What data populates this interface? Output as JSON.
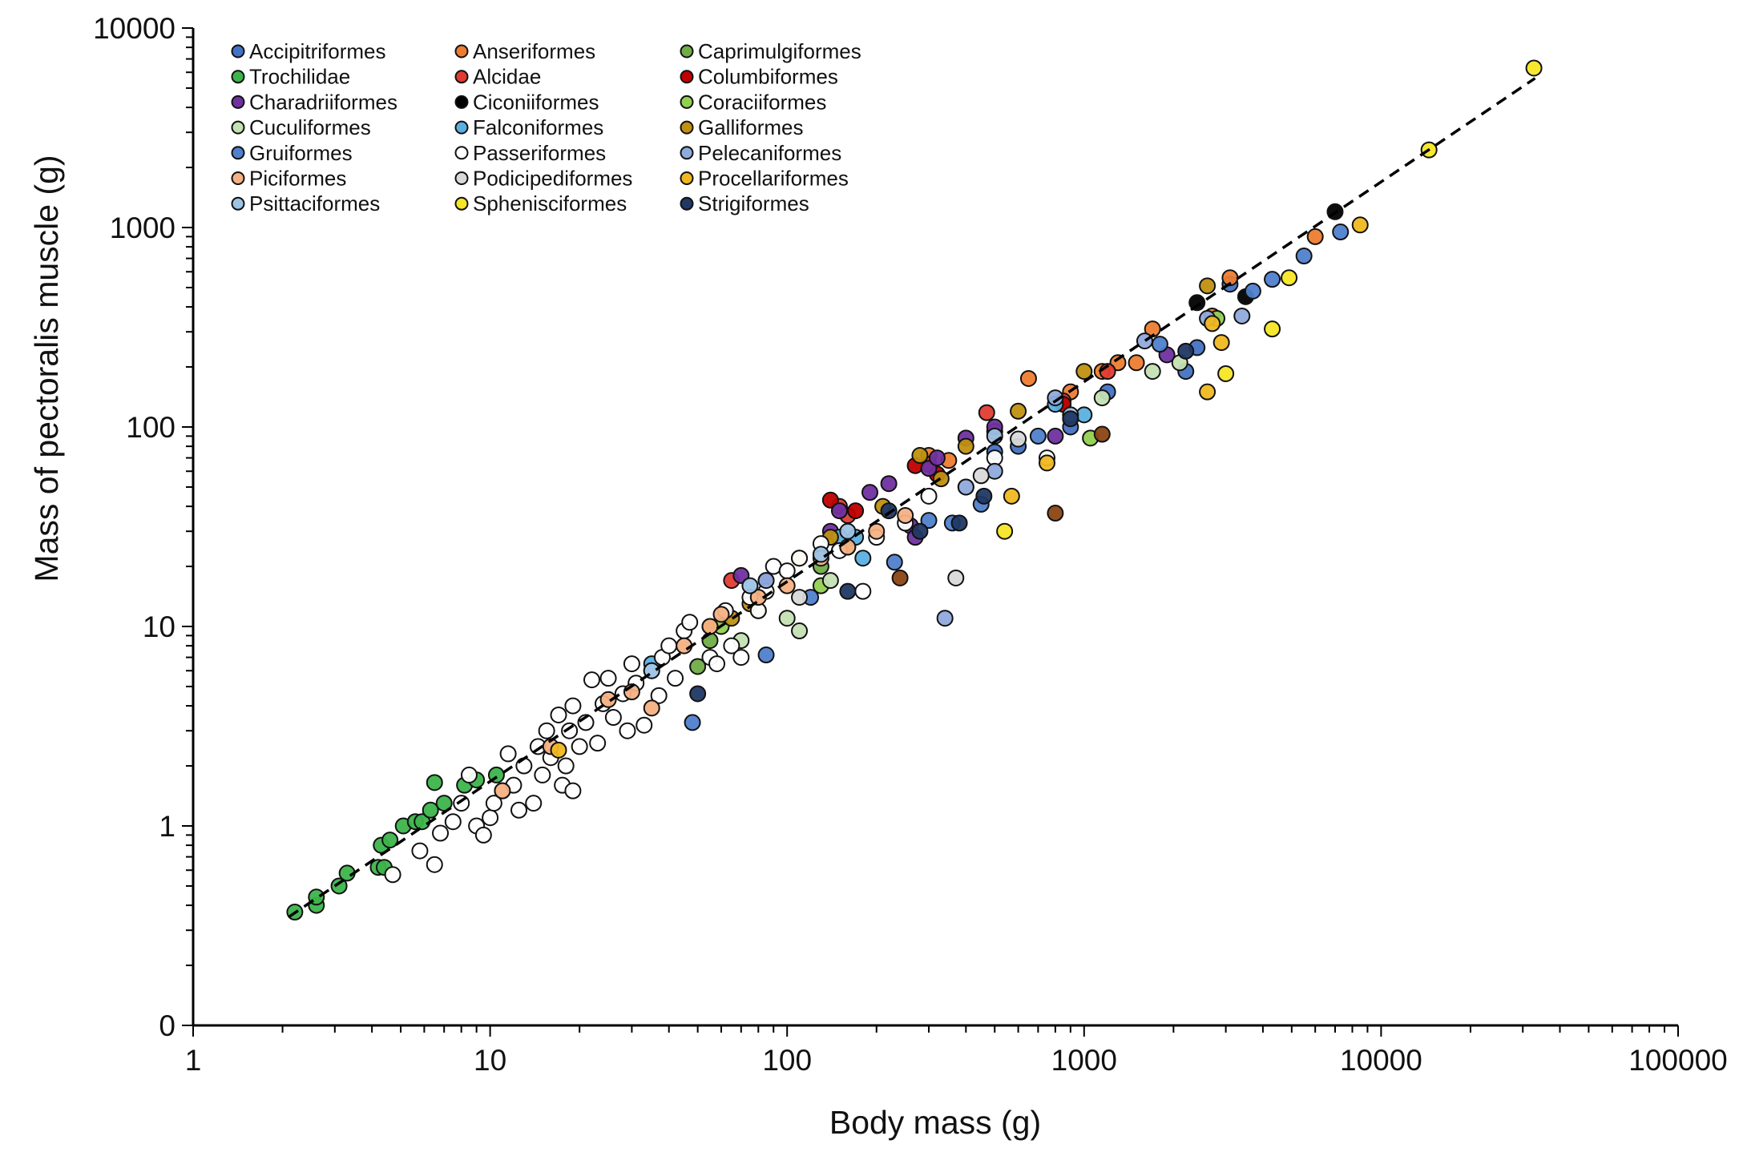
{
  "chart_data": {
    "type": "scatter",
    "title": "",
    "xlabel": "Body mass (g)",
    "ylabel": "Mass of pectoralis muscle (g)",
    "xscale": "log",
    "yscale": "log",
    "xlim": [
      1,
      100000
    ],
    "ylim": [
      0.1,
      10000
    ],
    "xticks": [
      1,
      10,
      100,
      1000,
      10000,
      100000
    ],
    "xtick_labels": [
      "1",
      "10",
      "100",
      "1000",
      "10000",
      "100000"
    ],
    "yticks": [
      0.1,
      1,
      10,
      100,
      1000,
      10000
    ],
    "ytick_labels": [
      "0",
      "1",
      "10",
      "100",
      "1000",
      "10000"
    ],
    "grid": false,
    "legend_placement": "top-left",
    "trendline": {
      "style": "dashed",
      "color": "#000000",
      "x": [
        2.1,
        33000
      ],
      "y": [
        0.35,
        5600
      ]
    },
    "series": [
      {
        "name": "Accipitriformes",
        "color": "#4472c4",
        "points": [
          [
            500,
            75
          ],
          [
            600,
            80
          ],
          [
            900,
            100
          ],
          [
            1200,
            150
          ],
          [
            2200,
            190
          ],
          [
            2400,
            250
          ],
          [
            3100,
            520
          ]
        ]
      },
      {
        "name": "Anseriformes",
        "color": "#ed7d31",
        "points": [
          [
            300,
            72
          ],
          [
            350,
            68
          ],
          [
            500,
            95
          ],
          [
            650,
            175
          ],
          [
            900,
            150
          ],
          [
            1150,
            190
          ],
          [
            1300,
            210
          ],
          [
            1500,
            210
          ],
          [
            1700,
            310
          ],
          [
            2700,
            360
          ],
          [
            3100,
            560
          ],
          [
            6000,
            900
          ]
        ]
      },
      {
        "name": "Caprimulgiformes",
        "color": "#70ad47",
        "points": [
          [
            50,
            6.3
          ],
          [
            55,
            8.5
          ],
          [
            80,
            12
          ],
          [
            130,
            20
          ]
        ]
      },
      {
        "name": "Trochilidae",
        "color": "#3cb44b",
        "points": [
          [
            2.2,
            0.37
          ],
          [
            2.6,
            0.4
          ],
          [
            2.6,
            0.44
          ],
          [
            3.1,
            0.5
          ],
          [
            3.3,
            0.58
          ],
          [
            4.2,
            0.62
          ],
          [
            4.4,
            0.62
          ],
          [
            4.3,
            0.8
          ],
          [
            4.6,
            0.85
          ],
          [
            5.1,
            1.0
          ],
          [
            5.6,
            1.05
          ],
          [
            5.9,
            1.05
          ],
          [
            6.3,
            1.2
          ],
          [
            6.5,
            1.65
          ],
          [
            7.0,
            1.3
          ],
          [
            8.2,
            1.6
          ],
          [
            9.0,
            1.7
          ],
          [
            10.5,
            1.8
          ]
        ]
      },
      {
        "name": "Alcidae",
        "color": "#e03c31",
        "points": [
          [
            65,
            17
          ],
          [
            150,
            40
          ],
          [
            160,
            36
          ],
          [
            300,
            65
          ],
          [
            470,
            118
          ],
          [
            850,
            135
          ],
          [
            1200,
            190
          ]
        ]
      },
      {
        "name": "Columbiformes",
        "color": "#c00000",
        "points": [
          [
            140,
            43
          ],
          [
            170,
            38
          ],
          [
            270,
            64
          ],
          [
            320,
            58
          ],
          [
            850,
            130
          ]
        ]
      },
      {
        "name": "Charadriiformes",
        "color": "#7030a0",
        "points": [
          [
            70,
            18
          ],
          [
            85,
            17
          ],
          [
            140,
            30
          ],
          [
            150,
            38
          ],
          [
            190,
            47
          ],
          [
            220,
            52
          ],
          [
            260,
            32
          ],
          [
            270,
            28
          ],
          [
            300,
            62
          ],
          [
            320,
            70
          ],
          [
            400,
            88
          ],
          [
            500,
            100
          ],
          [
            800,
            90
          ],
          [
            1900,
            230
          ]
        ]
      },
      {
        "name": "Ciconiiformes",
        "color": "#000000",
        "points": [
          [
            2400,
            420
          ],
          [
            3500,
            450
          ],
          [
            7000,
            1200
          ]
        ]
      },
      {
        "name": "Coraciiformes",
        "color": "#92d050",
        "points": [
          [
            60,
            10
          ],
          [
            130,
            16
          ],
          [
            160,
            25
          ],
          [
            1050,
            88
          ],
          [
            2800,
            350
          ]
        ]
      },
      {
        "name": "Cuculiformes",
        "color": "#c5e0b4",
        "points": [
          [
            70,
            8.5
          ],
          [
            100,
            11
          ],
          [
            110,
            9.5
          ],
          [
            140,
            17
          ],
          [
            1150,
            140
          ],
          [
            1700,
            190
          ],
          [
            2100,
            210
          ]
        ]
      },
      {
        "name": "Falconiformes",
        "color": "#5bb0e0",
        "points": [
          [
            35,
            6.5
          ],
          [
            150,
            28
          ],
          [
            170,
            28
          ],
          [
            180,
            22
          ],
          [
            800,
            130
          ],
          [
            1000,
            115
          ]
        ]
      },
      {
        "name": "Galliformes",
        "color": "#c09010",
        "points": [
          [
            55,
            10
          ],
          [
            65,
            11
          ],
          [
            75,
            13
          ],
          [
            110,
            22
          ],
          [
            140,
            28
          ],
          [
            210,
            40
          ],
          [
            280,
            72
          ],
          [
            330,
            55
          ],
          [
            400,
            80
          ],
          [
            600,
            120
          ],
          [
            1000,
            190
          ],
          [
            2600,
            510
          ]
        ]
      },
      {
        "name": "Gruiformes",
        "color": "#4f81cd",
        "points": [
          [
            48,
            3.3
          ],
          [
            85,
            7.2
          ],
          [
            120,
            14
          ],
          [
            230,
            21
          ],
          [
            300,
            34
          ],
          [
            360,
            33
          ],
          [
            450,
            41
          ],
          [
            700,
            90
          ],
          [
            1800,
            260
          ],
          [
            3700,
            480
          ],
          [
            4300,
            550
          ],
          [
            5500,
            720
          ],
          [
            7300,
            950
          ]
        ]
      },
      {
        "name": "Passeriformes",
        "color": "#ffffff",
        "points": [
          [
            4.7,
            0.57
          ],
          [
            5.8,
            0.75
          ],
          [
            6.5,
            0.64
          ],
          [
            6.8,
            0.92
          ],
          [
            7.5,
            1.05
          ],
          [
            8.0,
            1.3
          ],
          [
            8.5,
            1.8
          ],
          [
            9,
            1.0
          ],
          [
            9.5,
            0.9
          ],
          [
            10,
            1.1
          ],
          [
            10.3,
            1.3
          ],
          [
            11,
            1.5
          ],
          [
            11.5,
            2.3
          ],
          [
            12,
            1.6
          ],
          [
            12.5,
            1.2
          ],
          [
            13,
            2.0
          ],
          [
            14,
            1.3
          ],
          [
            14.5,
            2.5
          ],
          [
            15,
            1.8
          ],
          [
            15.5,
            3.0
          ],
          [
            16,
            2.2
          ],
          [
            17,
            3.6
          ],
          [
            17.5,
            1.6
          ],
          [
            18,
            2.0
          ],
          [
            18.5,
            3.0
          ],
          [
            19,
            4.0
          ],
          [
            19,
            1.5
          ],
          [
            20,
            2.5
          ],
          [
            21,
            3.3
          ],
          [
            22,
            5.4
          ],
          [
            23,
            2.6
          ],
          [
            24,
            4.1
          ],
          [
            25,
            5.5
          ],
          [
            26,
            3.5
          ],
          [
            28,
            4.6
          ],
          [
            29,
            3.0
          ],
          [
            30,
            6.5
          ],
          [
            31,
            5.2
          ],
          [
            33,
            3.2
          ],
          [
            35,
            6.0
          ],
          [
            37,
            4.5
          ],
          [
            38,
            7.0
          ],
          [
            40,
            8.0
          ],
          [
            42,
            5.5
          ],
          [
            45,
            9.5
          ],
          [
            47,
            10.5
          ],
          [
            55,
            7.0
          ],
          [
            58,
            6.5
          ],
          [
            62,
            12
          ],
          [
            65,
            8
          ],
          [
            70,
            7
          ],
          [
            75,
            14
          ],
          [
            80,
            12
          ],
          [
            85,
            15
          ],
          [
            90,
            20
          ],
          [
            100,
            19
          ],
          [
            110,
            22
          ],
          [
            130,
            26
          ],
          [
            150,
            24
          ],
          [
            180,
            15
          ],
          [
            200,
            28
          ],
          [
            250,
            33
          ],
          [
            300,
            45
          ],
          [
            400,
            50
          ],
          [
            500,
            70
          ],
          [
            750,
            70
          ]
        ]
      },
      {
        "name": "Pelecaniformes",
        "color": "#8faadc",
        "points": [
          [
            85,
            17
          ],
          [
            340,
            11
          ],
          [
            400,
            50
          ],
          [
            500,
            60
          ],
          [
            800,
            140
          ],
          [
            1600,
            270
          ],
          [
            2600,
            350
          ],
          [
            3400,
            360
          ]
        ]
      },
      {
        "name": "Piciformes",
        "color": "#f4b183",
        "points": [
          [
            11,
            1.5
          ],
          [
            16,
            2.5
          ],
          [
            25,
            4.3
          ],
          [
            30,
            4.7
          ],
          [
            35,
            3.9
          ],
          [
            45,
            8
          ],
          [
            55,
            10
          ],
          [
            60,
            11.5
          ],
          [
            80,
            14
          ],
          [
            100,
            16
          ],
          [
            130,
            22
          ],
          [
            160,
            25
          ],
          [
            200,
            30
          ],
          [
            250,
            36
          ]
        ]
      },
      {
        "name": "Podicipediformes",
        "color": "#d9d9d9",
        "points": [
          [
            110,
            14
          ],
          [
            370,
            17.5
          ],
          [
            450,
            57
          ],
          [
            600,
            87
          ]
        ]
      },
      {
        "name": "Procellariformes",
        "color": "#f0b820",
        "points": [
          [
            17,
            2.4
          ],
          [
            570,
            45
          ],
          [
            750,
            66
          ],
          [
            2600,
            150
          ],
          [
            2700,
            330
          ],
          [
            2900,
            265
          ],
          [
            8500,
            1030
          ]
        ]
      },
      {
        "name": "Psittaciformes",
        "color": "#9dc3e6",
        "points": [
          [
            35,
            6
          ],
          [
            75,
            16
          ],
          [
            130,
            23
          ],
          [
            160,
            30
          ],
          [
            500,
            90
          ],
          [
            900,
            115
          ]
        ]
      },
      {
        "name": "Sphenisciformes",
        "color": "#f5e625",
        "points": [
          [
            540,
            30
          ],
          [
            3000,
            185
          ],
          [
            4300,
            310
          ],
          [
            4900,
            560
          ],
          [
            14500,
            2450
          ],
          [
            32700,
            6300
          ]
        ]
      },
      {
        "name": "Strigiformes",
        "color": "#203864",
        "points": [
          [
            50,
            4.6
          ],
          [
            160,
            15
          ],
          [
            220,
            38
          ],
          [
            280,
            30
          ],
          [
            380,
            33
          ],
          [
            460,
            45
          ],
          [
            900,
            110
          ],
          [
            2200,
            240
          ]
        ]
      },
      {
        "color": "#8b4513",
        "points": [
          [
            240,
            17.5
          ],
          [
            800,
            37
          ],
          [
            1150,
            92
          ]
        ]
      }
    ]
  }
}
